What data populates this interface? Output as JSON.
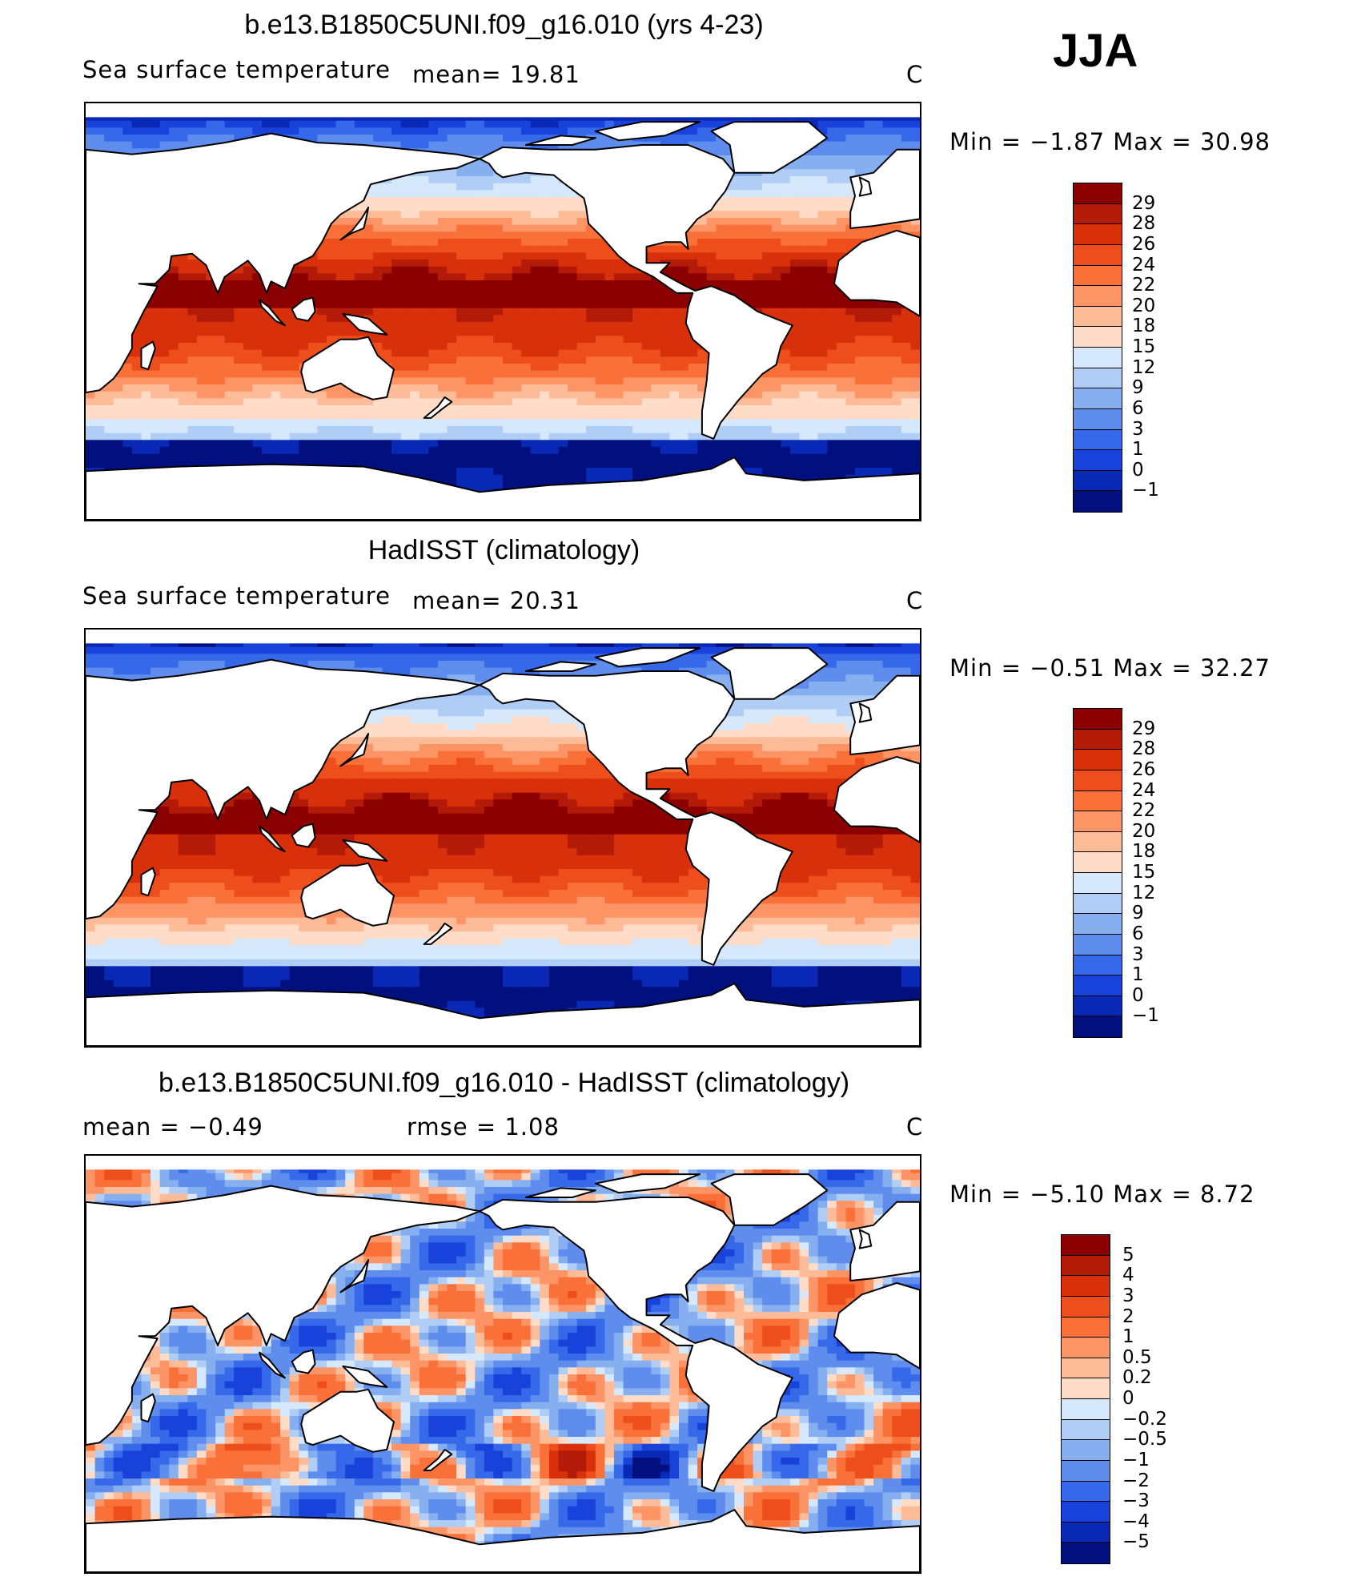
{
  "season_label": "JJA",
  "panels": [
    {
      "title": "b.e13.B1850C5UNI.f09_g16.010 (yrs 4-23)",
      "left_label": "Sea surface temperature",
      "mid_label": "mean=   19.81",
      "right_label": "C",
      "minmax": "Min =  −1.87  Max =   30.98",
      "colorbar_labels": [
        "29",
        "28",
        "26",
        "24",
        "22",
        "20",
        "18",
        "15",
        "12",
        "9",
        "6",
        "3",
        "1",
        "0",
        "−1"
      ],
      "colorbar_colors": [
        "#8b0000",
        "#b31b08",
        "#d8300b",
        "#ed4e1b",
        "#f97038",
        "#fc9466",
        "#fdbb97",
        "#fedcc8",
        "#d6e8fb",
        "#b0cdf5",
        "#86aff0",
        "#5f8ded",
        "#3669ea",
        "#1842d9",
        "#0a28b6",
        "#02107f"
      ],
      "stats": {
        "mean": 19.81,
        "min": -1.87,
        "max": 30.98,
        "unit": "C"
      }
    },
    {
      "title": "HadISST (climatology)",
      "left_label": "Sea surface temperature",
      "mid_label": "mean=   20.31",
      "right_label": "C",
      "minmax": "Min =  −0.51  Max =   32.27",
      "colorbar_labels": [
        "29",
        "28",
        "26",
        "24",
        "22",
        "20",
        "18",
        "15",
        "12",
        "9",
        "6",
        "3",
        "1",
        "0",
        "−1"
      ],
      "colorbar_colors": [
        "#8b0000",
        "#b31b08",
        "#d8300b",
        "#ed4e1b",
        "#f97038",
        "#fc9466",
        "#fdbb97",
        "#fedcc8",
        "#d6e8fb",
        "#b0cdf5",
        "#86aff0",
        "#5f8ded",
        "#3669ea",
        "#1842d9",
        "#0a28b6",
        "#02107f"
      ],
      "stats": {
        "mean": 20.31,
        "min": -0.51,
        "max": 32.27,
        "unit": "C"
      }
    },
    {
      "title": "b.e13.B1850C5UNI.f09_g16.010 - HadISST (climatology)",
      "left_label": "mean =   −0.49",
      "mid_label": "rmse =    1.08",
      "right_label": "C",
      "minmax": "Min =  −5.10  Max =    8.72",
      "colorbar_labels": [
        "5",
        "4",
        "3",
        "2",
        "1",
        "0.5",
        "0.2",
        "0",
        "−0.2",
        "−0.5",
        "−1",
        "−2",
        "−3",
        "−4",
        "−5"
      ],
      "colorbar_colors": [
        "#8b0000",
        "#b31b08",
        "#d8300b",
        "#ed4e1b",
        "#f97038",
        "#fc9466",
        "#fdbb97",
        "#fedcc8",
        "#d6e8fb",
        "#b0cdf5",
        "#86aff0",
        "#5f8ded",
        "#3669ea",
        "#1842d9",
        "#0a28b6",
        "#02107f"
      ],
      "stats": {
        "mean": -0.49,
        "rmse": 1.08,
        "min": -5.1,
        "max": 8.72,
        "unit": "C"
      }
    }
  ]
}
